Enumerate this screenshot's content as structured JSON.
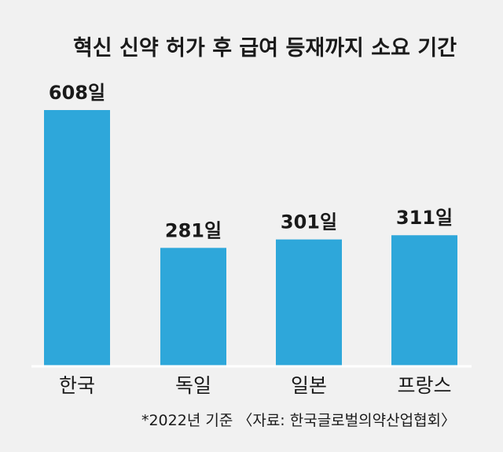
{
  "chart_data": {
    "type": "bar",
    "title": "혁신 신약 허가 후 급여 등재까지 소요 기간",
    "categories": [
      "한국",
      "독일",
      "일본",
      "프랑스"
    ],
    "values": [
      608,
      281,
      301,
      311
    ],
    "value_labels": [
      "608일",
      "281일",
      "301일",
      "311일"
    ],
    "unit": "일",
    "footnote": "*2022년 기준 〈자료: 한국글로벌의약산업협회〉",
    "bar_color": "#2ea7da",
    "grid": false,
    "legend": "none"
  }
}
